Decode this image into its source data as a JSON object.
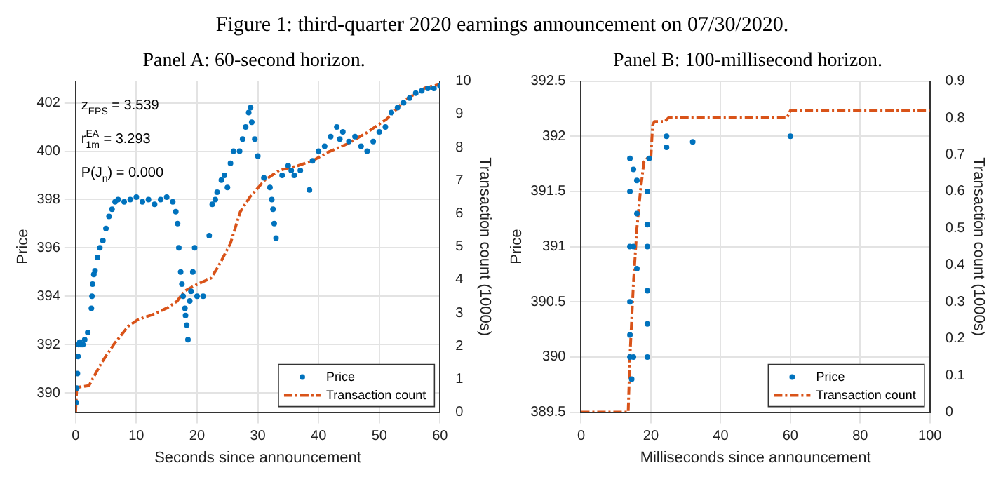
{
  "chart_data": [
    {
      "type": "other",
      "title": "Figure 1: third-quarter 2020 earnings announcement on 07/30/2020."
    },
    {
      "type": "scatter",
      "title": "Panel A: 60-second horizon.",
      "xlabel": "Seconds since announcement",
      "ylabel": "Price",
      "y2label": "Transaction count (1000s)",
      "xlim": [
        0,
        60
      ],
      "xticks": [
        0,
        10,
        20,
        30,
        40,
        50,
        60
      ],
      "ylim": [
        389.2,
        402.9
      ],
      "yticks": [
        390,
        392,
        394,
        396,
        398,
        400,
        402
      ],
      "y2lim": [
        0,
        10
      ],
      "y2ticks": [
        0,
        1,
        2,
        3,
        4,
        5,
        6,
        7,
        8,
        9,
        10
      ],
      "grid": true,
      "legend": "bottom right",
      "annotations": [
        "z$_{EPS}$ = 3.539",
        "r$^{EA}$$_{1m}$ = 3.293",
        "P(J$_{n}$) = 0.000"
      ],
      "series": [
        {
          "name": "Price",
          "type": "scatter",
          "color": "#0072bd",
          "marker": "circle",
          "x": [
            0.1,
            0.2,
            0.3,
            0.4,
            0.5,
            0.7,
            0.9,
            1.2,
            1.5,
            2,
            2.6,
            2.7,
            2.8,
            3,
            3.2,
            3.6,
            4,
            4.5,
            5,
            5.5,
            6,
            6.5,
            7,
            8,
            9,
            10,
            11,
            12,
            13,
            14,
            15,
            16,
            16.5,
            16.8,
            17,
            17.3,
            17.5,
            17.7,
            18,
            18.1,
            18.3,
            18.5,
            18.8,
            19,
            19.3,
            19.6,
            20,
            21,
            22,
            22.5,
            23,
            23.3,
            24,
            24.5,
            25,
            25.5,
            26,
            27,
            27.5,
            28,
            28.5,
            28.8,
            29,
            29.5,
            30,
            31,
            32,
            32.3,
            32.5,
            32.7,
            33,
            34,
            35,
            35.5,
            36,
            37,
            38.5,
            39,
            40,
            41,
            42,
            43,
            43.5,
            44,
            45,
            46,
            47,
            48,
            49,
            50,
            51,
            52,
            53,
            54,
            55,
            56,
            57,
            58,
            59,
            60
          ],
          "values": [
            389.6,
            390.2,
            390.8,
            391.5,
            392,
            392.1,
            392.0,
            392.0,
            392.2,
            392.5,
            393.5,
            394,
            394.5,
            394.9,
            395.05,
            395.6,
            396,
            396.3,
            396.8,
            397.3,
            397.6,
            397.9,
            398,
            397.9,
            398,
            398.1,
            397.9,
            398,
            397.8,
            398,
            398.1,
            397.9,
            397.5,
            397,
            396,
            395,
            394.5,
            394,
            393.5,
            393.2,
            392.8,
            392.2,
            393.8,
            394.2,
            395,
            396,
            394,
            394,
            396.5,
            397.8,
            398,
            398.3,
            398.8,
            399,
            398.5,
            399.5,
            400,
            400,
            400.5,
            401,
            401.6,
            401.8,
            401.2,
            400.5,
            399.8,
            398.9,
            398.5,
            398,
            397.6,
            397,
            396.4,
            399,
            399.4,
            399.2,
            399,
            399.2,
            398.4,
            399.6,
            400,
            400.2,
            400.6,
            401,
            400.5,
            400.8,
            400.4,
            400.6,
            400.2,
            400,
            400.4,
            400.8,
            401,
            401.6,
            401.8,
            402,
            402.2,
            402.4,
            402.5,
            402.6,
            402.6,
            402.7
          ]
        },
        {
          "name": "Transaction count",
          "type": "line",
          "axis": "y2",
          "color": "#d95319",
          "marker": "none",
          "line_style": "dashed",
          "x": [
            0,
            0.2,
            2.2,
            3,
            4.3,
            6.3,
            8.7,
            10.3,
            12.7,
            15.1,
            16.7,
            17.9,
            19.9,
            22.3,
            23.5,
            25.5,
            27.1,
            28.7,
            31.1,
            33.5,
            36.7,
            39.1,
            41.5,
            44.7,
            48,
            51.2,
            54.4,
            57.6,
            60
          ],
          "values": [
            0,
            0.75,
            0.8,
            1.07,
            1.5,
            2.05,
            2.6,
            2.8,
            2.95,
            3.15,
            3.35,
            3.65,
            3.85,
            4.05,
            4.4,
            5.1,
            6.05,
            6.5,
            7,
            7.3,
            7.45,
            7.6,
            7.85,
            8.1,
            8.45,
            8.85,
            9.45,
            9.8,
            9.9
          ]
        }
      ]
    },
    {
      "type": "scatter",
      "title": "Panel B: 100-millisecond horizon.",
      "xlabel": "Milliseconds since announcement",
      "ylabel": "Price",
      "y2label": "Transaction count (1000s)",
      "xlim": [
        0,
        100
      ],
      "xticks": [
        0,
        20,
        40,
        60,
        80,
        100
      ],
      "ylim": [
        389.5,
        392.5
      ],
      "yticks": [
        389.5,
        390,
        390.5,
        391,
        391.5,
        392,
        392.5
      ],
      "y2lim": [
        0,
        0.9
      ],
      "y2ticks": [
        0,
        0.1,
        0.2,
        0.3,
        0.4,
        0.5,
        0.6,
        0.7,
        0.8,
        0.9
      ],
      "grid": true,
      "legend": "bottom right",
      "series": [
        {
          "name": "Price",
          "type": "scatter",
          "color": "#0072bd",
          "marker": "circle",
          "x": [
            14,
            14,
            14,
            14,
            14,
            14,
            14.5,
            15,
            15,
            15,
            16,
            16,
            16,
            19,
            19,
            19,
            19,
            19,
            19,
            19.5,
            24.5,
            24.5,
            32,
            60
          ],
          "values": [
            390,
            390.2,
            390.5,
            391,
            391.5,
            391.8,
            389.8,
            390,
            391,
            391.7,
            390.8,
            391.3,
            391.6,
            390,
            390.3,
            390.6,
            391,
            391.2,
            391.5,
            391.8,
            391.9,
            392,
            391.95,
            392
          ]
        },
        {
          "name": "Transaction count",
          "type": "line",
          "axis": "y2",
          "color": "#d95319",
          "marker": "none",
          "line_style": "dashed",
          "x": [
            0,
            13.5,
            14,
            15,
            16,
            17,
            18,
            19,
            20,
            20.5,
            21,
            24,
            25,
            59,
            60,
            100
          ],
          "values": [
            0,
            0,
            0.15,
            0.35,
            0.5,
            0.6,
            0.68,
            0.69,
            0.69,
            0.78,
            0.79,
            0.79,
            0.8,
            0.8,
            0.82,
            0.82
          ]
        }
      ]
    }
  ]
}
